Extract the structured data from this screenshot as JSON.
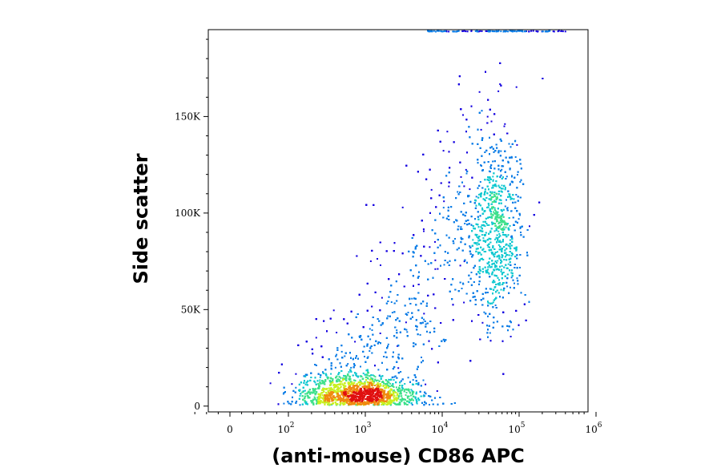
{
  "chart_data": {
    "type": "scatter",
    "title": "",
    "xlabel": "(anti-mouse) CD86 APC",
    "ylabel": "Side scatter",
    "x_scale": "biexponential",
    "y_scale": "linear",
    "xlim": [
      -100,
      1000000
    ],
    "ylim": [
      -3000,
      195000
    ],
    "grid": false,
    "x_ticks": [
      {
        "value": 0,
        "base": "0",
        "exp": ""
      },
      {
        "value": 100,
        "base": "10",
        "exp": "2"
      },
      {
        "value": 1000,
        "base": "10",
        "exp": "3"
      },
      {
        "value": 10000,
        "base": "10",
        "exp": "4"
      },
      {
        "value": 100000,
        "base": "10",
        "exp": "5"
      },
      {
        "value": 1000000,
        "base": "10",
        "exp": "6"
      }
    ],
    "y_ticks": [
      {
        "value": 0,
        "label": "0"
      },
      {
        "value": 50000,
        "label": "50K"
      },
      {
        "value": 100000,
        "label": "100K"
      },
      {
        "value": 150000,
        "label": "150K"
      }
    ],
    "density_colors": [
      "#1400e0",
      "#0a7ce6",
      "#10c8d0",
      "#3ee08a",
      "#c8f020",
      "#f08a10",
      "#e01010"
    ],
    "populations": [
      {
        "x_log10_center": 2.9,
        "y_center": 6500,
        "x_log10_sd": 0.38,
        "y_sd": 4500,
        "fraction": 0.5
      },
      {
        "x_log10_center": 4.68,
        "y_center": 92000,
        "x_log10_sd": 0.17,
        "y_sd": 24000,
        "fraction": 0.3
      },
      {
        "x_log10_center": 3.7,
        "y_center": 45000,
        "x_log10_sd": 0.5,
        "y_sd": 30000,
        "fraction": 0.2
      }
    ]
  }
}
